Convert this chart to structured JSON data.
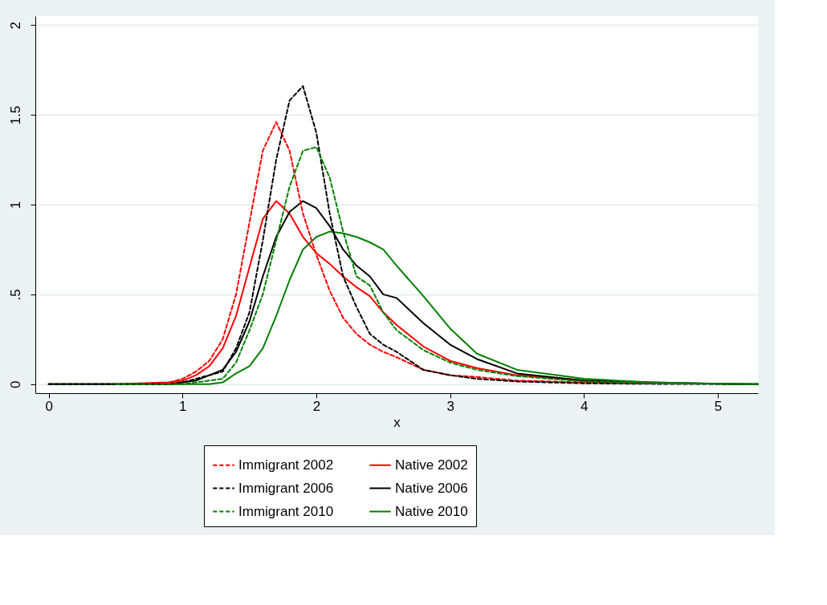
{
  "chart_data": {
    "type": "line",
    "xlabel": "x",
    "x": [
      0,
      0.5,
      0.9,
      1.0,
      1.1,
      1.2,
      1.3,
      1.4,
      1.5,
      1.6,
      1.7,
      1.8,
      1.9,
      2.0,
      2.1,
      2.2,
      2.3,
      2.4,
      2.5,
      2.6,
      2.8,
      3.0,
      3.2,
      3.5,
      4.0,
      4.5,
      5.0,
      5.3
    ],
    "xlim": [
      -0.1,
      5.3
    ],
    "xticks": [
      0,
      1,
      2,
      3,
      4,
      5
    ],
    "ylim": [
      -0.05,
      2.05
    ],
    "yticks": [
      0,
      {
        "value": 0.5,
        "label": ".5"
      },
      1,
      1.5,
      2
    ],
    "grid": "y",
    "legend": "bottom",
    "series": [
      {
        "name": "Immigrant 2002",
        "color": "#ff0000",
        "line_style": "dashed",
        "values": [
          null,
          null,
          0.01,
          0.03,
          0.07,
          0.13,
          0.25,
          0.5,
          0.9,
          1.3,
          1.46,
          1.3,
          0.95,
          0.72,
          0.52,
          0.37,
          0.28,
          0.22,
          0.18,
          0.15,
          0.08,
          0.05,
          0.04,
          0.02,
          0.01,
          0.005,
          null,
          null
        ]
      },
      {
        "name": "Native 2002",
        "color": "#ff0000",
        "line_style": "solid",
        "values": [
          0,
          0,
          0.01,
          0.02,
          0.05,
          0.1,
          0.2,
          0.38,
          0.65,
          0.92,
          1.02,
          0.95,
          0.82,
          0.73,
          0.67,
          0.6,
          0.54,
          0.49,
          0.4,
          0.33,
          0.21,
          0.13,
          0.09,
          0.05,
          0.02,
          0.008,
          null,
          null
        ]
      },
      {
        "name": "Immigrant 2006",
        "color": "#000000",
        "line_style": "dashed",
        "values": [
          0,
          0,
          0,
          0.01,
          0.03,
          0.05,
          0.07,
          0.2,
          0.4,
          0.8,
          1.25,
          1.58,
          1.66,
          1.4,
          0.95,
          0.6,
          0.43,
          0.28,
          0.22,
          0.18,
          0.08,
          0.05,
          0.03,
          0.015,
          0.005,
          0.002,
          0.001,
          0
        ]
      },
      {
        "name": "Native 2006",
        "color": "#000000",
        "line_style": "solid",
        "values": [
          0,
          0,
          0,
          0.01,
          0.02,
          0.05,
          0.08,
          0.18,
          0.35,
          0.6,
          0.82,
          0.96,
          1.02,
          0.98,
          0.88,
          0.75,
          0.66,
          0.6,
          0.5,
          0.48,
          0.34,
          0.22,
          0.14,
          0.06,
          0.02,
          0.01,
          0.003,
          0
        ]
      },
      {
        "name": "Immigrant 2010",
        "color": "#008000",
        "line_style": "dashed",
        "values": [
          null,
          0,
          0,
          0,
          0.01,
          0.02,
          0.03,
          0.12,
          0.3,
          0.5,
          0.8,
          1.1,
          1.3,
          1.32,
          1.15,
          0.85,
          0.6,
          0.55,
          0.4,
          0.3,
          0.19,
          0.12,
          0.08,
          0.045,
          0.015,
          0.005,
          0.002,
          0
        ]
      },
      {
        "name": "Native 2010",
        "color": "#008000",
        "line_style": "solid",
        "values": [
          0,
          0,
          0,
          0,
          0,
          0,
          0.01,
          0.06,
          0.1,
          0.2,
          0.38,
          0.58,
          0.75,
          0.82,
          0.85,
          0.84,
          0.82,
          0.79,
          0.75,
          0.66,
          0.49,
          0.31,
          0.17,
          0.08,
          0.03,
          0.01,
          0.003,
          0
        ]
      }
    ]
  }
}
